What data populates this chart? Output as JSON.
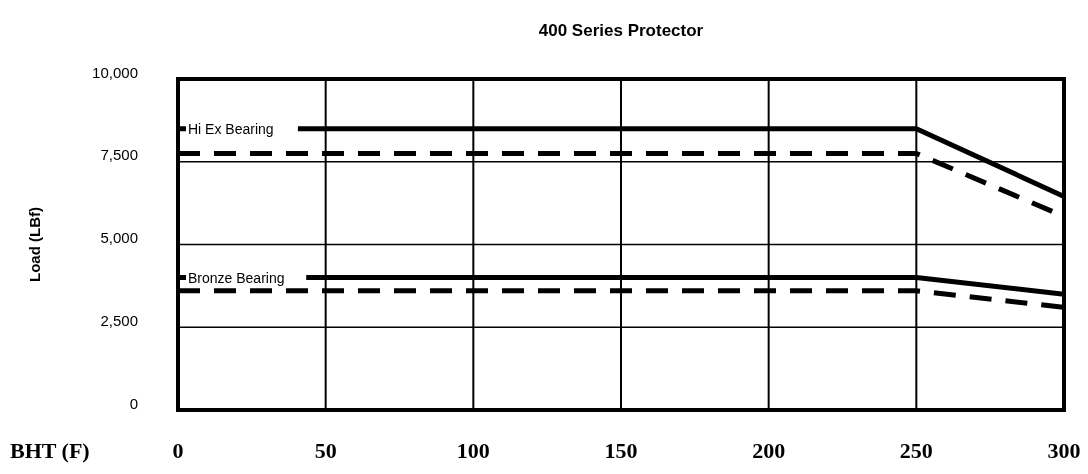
{
  "chart_data": {
    "type": "line",
    "title": "400 Series Protector",
    "xlabel": "BHT (F)",
    "ylabel": "Load (LBf)",
    "x": [
      0,
      250,
      300
    ],
    "series": [
      {
        "name": "Hi Ex Bearing",
        "color": "#000000",
        "line_style": "solid",
        "values": [
          8500,
          8500,
          6450
        ]
      },
      {
        "color": "#000000",
        "line_style": "dashed",
        "values": [
          7750,
          7750,
          5850
        ]
      },
      {
        "name": "Bronze Bearing",
        "color": "#000000",
        "line_style": "solid",
        "values": [
          4000,
          4000,
          3500
        ]
      },
      {
        "color": "#000000",
        "line_style": "dashed",
        "values": [
          3600,
          3600,
          3100
        ]
      }
    ],
    "xlim": [
      0,
      300
    ],
    "xticks": [
      0,
      50,
      100,
      150,
      200,
      250,
      300
    ],
    "ylim": [
      0,
      10000
    ],
    "yticks": [
      {
        "value": 0,
        "label": "0"
      },
      {
        "value": 2500,
        "label": "2,500"
      },
      {
        "value": 5000,
        "label": "5,000"
      },
      {
        "value": 7500,
        "label": "7,500"
      },
      {
        "value": 10000,
        "label": "10,000"
      }
    ],
    "grid": true,
    "marker": "none"
  }
}
